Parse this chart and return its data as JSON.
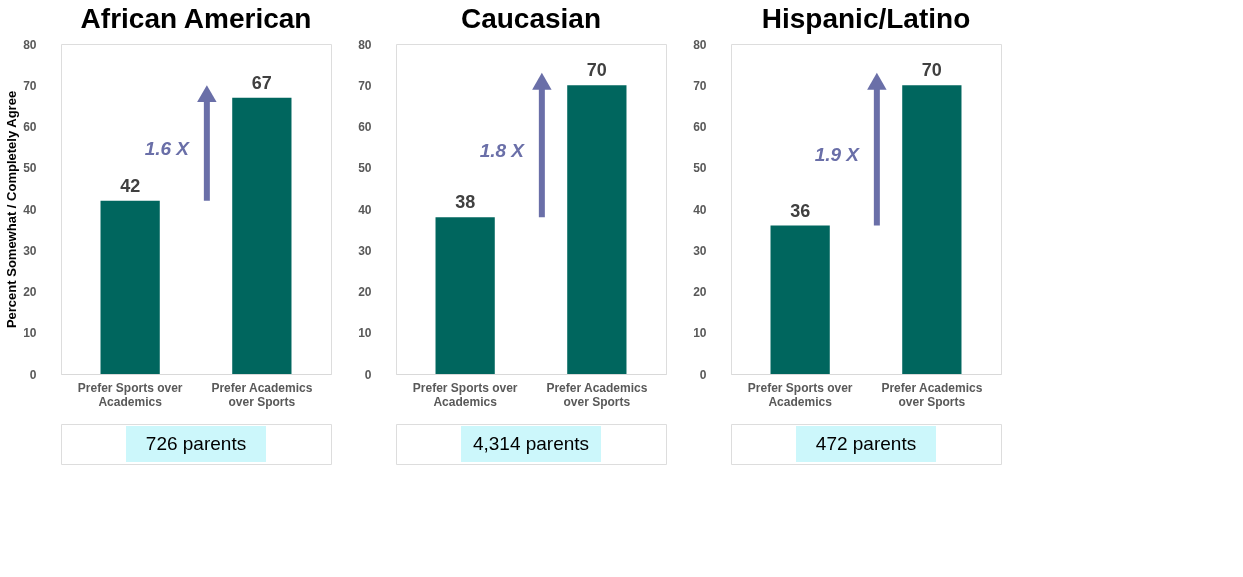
{
  "chart_data": [
    {
      "type": "bar",
      "title": "African American",
      "ylabel": "Percent Somewhat / Completely Agree",
      "categories": [
        "Prefer Sports over Academics",
        "Prefer Academics over Sports"
      ],
      "values": [
        42,
        67
      ],
      "color": "#00665e",
      "ylim": [
        0,
        80
      ],
      "yticks": [
        0,
        10,
        20,
        30,
        40,
        50,
        60,
        70,
        80
      ],
      "data_labels": true,
      "grid": false,
      "annotations": [
        "1.6 X",
        "726 parents"
      ]
    },
    {
      "type": "bar",
      "title": "Caucasian",
      "categories": [
        "Prefer Sports over Academics",
        "Prefer Academics over Sports"
      ],
      "values": [
        38,
        70
      ],
      "color": "#00665e",
      "ylim": [
        0,
        80
      ],
      "yticks": [
        0,
        10,
        20,
        30,
        40,
        50,
        60,
        70,
        80
      ],
      "data_labels": true,
      "grid": false,
      "annotations": [
        "1.8 X",
        "4,314 parents"
      ]
    },
    {
      "type": "bar",
      "title": "Hispanic/Latino",
      "categories": [
        "Prefer Sports over Academics",
        "Prefer Academics over Sports"
      ],
      "values": [
        36,
        70
      ],
      "color": "#00665e",
      "ylim": [
        0,
        80
      ],
      "yticks": [
        0,
        10,
        20,
        30,
        40,
        50,
        60,
        70,
        80
      ],
      "data_labels": true,
      "grid": false,
      "annotations": [
        "1.9 X",
        "472 parents"
      ]
    }
  ]
}
